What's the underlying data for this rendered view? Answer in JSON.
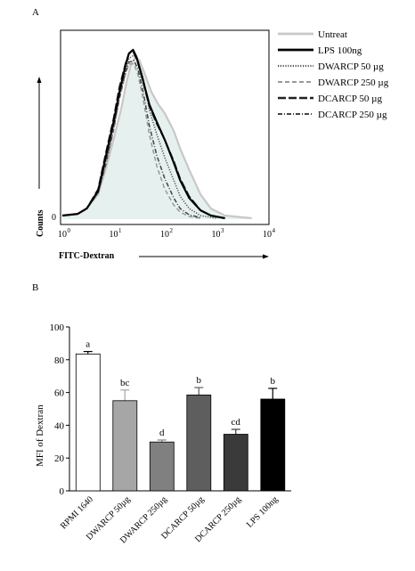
{
  "chart_data": [
    {
      "panel": "A",
      "type": "line",
      "xlabel": "FITC-Dextran",
      "ylabel": "Counts",
      "x_scale": "log",
      "xlim": [
        1,
        10000
      ],
      "x_ticks": [
        {
          "base": "10",
          "exp": "0",
          "value": 1
        },
        {
          "base": "10",
          "exp": "1",
          "value": 10
        },
        {
          "base": "10",
          "exp": "2",
          "value": 100
        },
        {
          "base": "10",
          "exp": "3",
          "value": 1000
        },
        {
          "base": "10",
          "exp": "4",
          "value": 10000
        }
      ],
      "y_ticks": [
        {
          "label": "0",
          "value": 0
        }
      ],
      "legend_position": "right",
      "legend": [
        {
          "label": "Untreat",
          "color": "#c8c8c8",
          "style": "solid-thick"
        },
        {
          "label": "LPS 100ng",
          "color": "#000000",
          "style": "solid-thick"
        },
        {
          "label": "DWARCP 50 µg",
          "color": "#555555",
          "style": "dotted"
        },
        {
          "label": "DWARCP 250 µg",
          "color": "#999999",
          "style": "dashed"
        },
        {
          "label": "DCARCP 50 µg",
          "color": "#222222",
          "style": "long-dash"
        },
        {
          "label": "DCARCP 250 µg",
          "color": "#444444",
          "style": "dash-dot"
        }
      ],
      "series": [
        {
          "points": [
            [
              1,
              0.02
            ],
            [
              2,
              0.03
            ],
            [
              3,
              0.06
            ],
            [
              5,
              0.14
            ],
            [
              7,
              0.28
            ],
            [
              10,
              0.45
            ],
            [
              14,
              0.62
            ],
            [
              18,
              0.78
            ],
            [
              22,
              0.88
            ],
            [
              27,
              0.92
            ],
            [
              32,
              0.9
            ],
            [
              40,
              0.83
            ],
            [
              55,
              0.72
            ],
            [
              75,
              0.65
            ],
            [
              100,
              0.6
            ],
            [
              150,
              0.5
            ],
            [
              200,
              0.4
            ],
            [
              300,
              0.28
            ],
            [
              500,
              0.14
            ],
            [
              800,
              0.06
            ],
            [
              1500,
              0.02
            ],
            [
              5000,
              0.005
            ]
          ]
        },
        {
          "points": [
            [
              1,
              0.02
            ],
            [
              2,
              0.03
            ],
            [
              3,
              0.06
            ],
            [
              5,
              0.16
            ],
            [
              7,
              0.35
            ],
            [
              10,
              0.55
            ],
            [
              13,
              0.72
            ],
            [
              17,
              0.87
            ],
            [
              20,
              0.94
            ],
            [
              24,
              0.96
            ],
            [
              28,
              0.92
            ],
            [
              35,
              0.82
            ],
            [
              50,
              0.65
            ],
            [
              70,
              0.55
            ],
            [
              100,
              0.45
            ],
            [
              150,
              0.32
            ],
            [
              200,
              0.22
            ],
            [
              300,
              0.12
            ],
            [
              500,
              0.05
            ],
            [
              800,
              0.02
            ],
            [
              1500,
              0.005
            ]
          ]
        },
        {
          "points": [
            [
              1,
              0.02
            ],
            [
              2,
              0.03
            ],
            [
              3,
              0.06
            ],
            [
              5,
              0.15
            ],
            [
              7,
              0.32
            ],
            [
              10,
              0.52
            ],
            [
              13,
              0.7
            ],
            [
              17,
              0.84
            ],
            [
              20,
              0.91
            ],
            [
              25,
              0.93
            ],
            [
              30,
              0.9
            ],
            [
              38,
              0.8
            ],
            [
              50,
              0.62
            ],
            [
              70,
              0.48
            ],
            [
              100,
              0.35
            ],
            [
              150,
              0.22
            ],
            [
              200,
              0.13
            ],
            [
              300,
              0.06
            ],
            [
              500,
              0.02
            ],
            [
              1000,
              0.005
            ]
          ]
        },
        {
          "points": [
            [
              1,
              0.02
            ],
            [
              2,
              0.03
            ],
            [
              3,
              0.06
            ],
            [
              5,
              0.15
            ],
            [
              7,
              0.3
            ],
            [
              10,
              0.5
            ],
            [
              13,
              0.68
            ],
            [
              17,
              0.82
            ],
            [
              20,
              0.88
            ],
            [
              25,
              0.88
            ],
            [
              30,
              0.82
            ],
            [
              38,
              0.68
            ],
            [
              50,
              0.48
            ],
            [
              70,
              0.3
            ],
            [
              100,
              0.17
            ],
            [
              150,
              0.08
            ],
            [
              200,
              0.04
            ],
            [
              300,
              0.015
            ],
            [
              500,
              0.005
            ]
          ]
        },
        {
          "points": [
            [
              1,
              0.02
            ],
            [
              2,
              0.03
            ],
            [
              3,
              0.06
            ],
            [
              5,
              0.17
            ],
            [
              7,
              0.37
            ],
            [
              10,
              0.57
            ],
            [
              13,
              0.75
            ],
            [
              17,
              0.88
            ],
            [
              20,
              0.94
            ],
            [
              24,
              0.95
            ],
            [
              29,
              0.9
            ],
            [
              36,
              0.8
            ],
            [
              50,
              0.64
            ],
            [
              70,
              0.54
            ],
            [
              100,
              0.45
            ],
            [
              150,
              0.33
            ],
            [
              200,
              0.23
            ],
            [
              300,
              0.13
            ],
            [
              500,
              0.05
            ],
            [
              800,
              0.02
            ],
            [
              1500,
              0.005
            ]
          ]
        },
        {
          "points": [
            [
              1,
              0.02
            ],
            [
              2,
              0.03
            ],
            [
              3,
              0.06
            ],
            [
              5,
              0.15
            ],
            [
              7,
              0.31
            ],
            [
              10,
              0.51
            ],
            [
              13,
              0.69
            ],
            [
              17,
              0.83
            ],
            [
              20,
              0.89
            ],
            [
              25,
              0.9
            ],
            [
              30,
              0.85
            ],
            [
              38,
              0.72
            ],
            [
              50,
              0.53
            ],
            [
              70,
              0.36
            ],
            [
              100,
              0.23
            ],
            [
              150,
              0.12
            ],
            [
              200,
              0.06
            ],
            [
              300,
              0.025
            ],
            [
              500,
              0.008
            ]
          ]
        }
      ]
    },
    {
      "panel": "B",
      "type": "bar",
      "ylabel": "MFI of Dextran",
      "ylim": [
        0,
        100
      ],
      "y_ticks": [
        0,
        20,
        40,
        60,
        80,
        100
      ],
      "categories": [
        "RPMI 1640",
        "DWARCP 50µg",
        "DWARCP 250µg",
        "DCARCP 50µg",
        "DCARCP 250µg",
        "LPS 100ng"
      ],
      "values": [
        83.5,
        55,
        29.8,
        58.5,
        34.5,
        56
      ],
      "errors": [
        1.5,
        6.5,
        1.2,
        4.5,
        3,
        6.5
      ],
      "colors": [
        "#ffffff",
        "#a6a6a6",
        "#808080",
        "#5e5e5e",
        "#3a3a3a",
        "#000000"
      ],
      "significance": [
        "a",
        "bc",
        "d",
        "b",
        "cd",
        "b"
      ]
    }
  ]
}
